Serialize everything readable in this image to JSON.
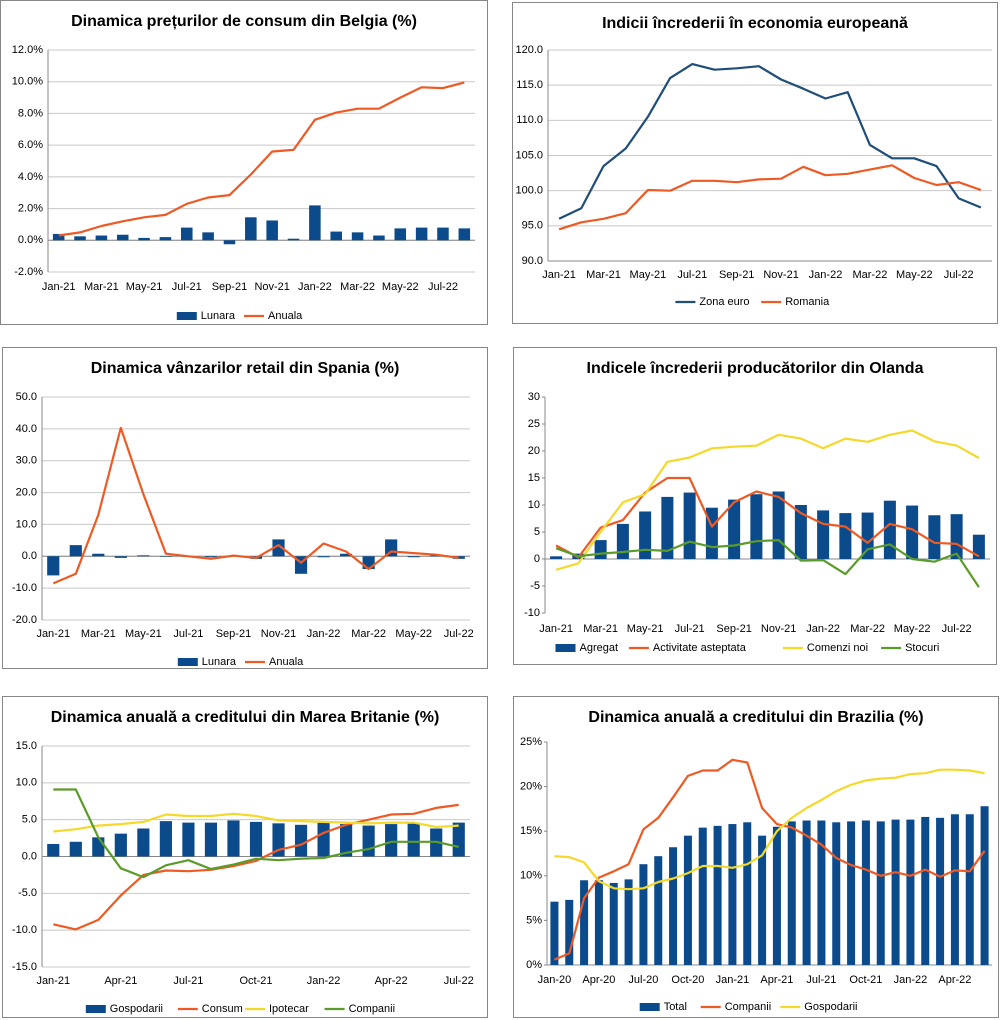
{
  "chart_data": [
    {
      "type": "combo",
      "title": "Dinamica prețurilor de consum din Belgia (%)",
      "categories": [
        "Jan-21",
        null,
        "Mar-21",
        null,
        "May-21",
        null,
        "Jul-21",
        null,
        "Sep-21",
        null,
        "Nov-21",
        null,
        "Jan-22",
        null,
        "Mar-22",
        null,
        "May-22",
        null,
        "Jul-22",
        null
      ],
      "series": [
        {
          "name": "Lunara",
          "type": "bar",
          "color": "#0b4a8b",
          "values": [
            0.4,
            0.25,
            0.3,
            0.35,
            0.15,
            0.2,
            0.8,
            0.5,
            -0.25,
            1.45,
            1.25,
            0.1,
            2.2,
            0.55,
            0.5,
            0.3,
            0.75,
            0.8,
            0.8,
            0.75
          ]
        },
        {
          "name": "Anuala",
          "type": "line",
          "color": "#ee5a24",
          "values": [
            0.3,
            0.5,
            0.9,
            1.2,
            1.45,
            1.6,
            2.3,
            2.7,
            2.85,
            4.15,
            5.6,
            5.7,
            7.6,
            8.05,
            8.3,
            8.3,
            9.0,
            9.65,
            9.6,
            9.95
          ]
        }
      ],
      "ylim": [
        -2,
        12
      ],
      "yticks": [
        {
          "value": -2,
          "label": "-2.0%"
        },
        {
          "value": 0,
          "label": "0.0%"
        },
        {
          "value": 2,
          "label": "2.0%"
        },
        {
          "value": 4,
          "label": "4.0%"
        },
        {
          "value": 6,
          "label": "6.0%"
        },
        {
          "value": 8,
          "label": "8.0%"
        },
        {
          "value": 10,
          "label": "10.0%"
        },
        {
          "value": 12,
          "label": "12.0%"
        }
      ],
      "grid": true,
      "legend": "bottom"
    },
    {
      "type": "line",
      "title": "Indicii încrederii în economia europeană",
      "categories": [
        "Jan-21",
        null,
        "Mar-21",
        null,
        "May-21",
        null,
        "Jul-21",
        null,
        "Sep-21",
        null,
        "Nov-21",
        null,
        "Jan-22",
        null,
        "Mar-22",
        null,
        "May-22",
        null,
        "Jul-22",
        null
      ],
      "series": [
        {
          "name": "Zona euro",
          "type": "line",
          "color": "#1f4e79",
          "values": [
            96.0,
            97.5,
            103.5,
            106.0,
            110.5,
            116.0,
            118.0,
            117.2,
            117.4,
            117.7,
            115.8,
            114.5,
            113.1,
            114.0,
            106.5,
            104.6,
            104.6,
            103.5,
            98.9,
            97.6
          ]
        },
        {
          "name": "Romania",
          "type": "line",
          "color": "#ee5a24",
          "values": [
            94.5,
            95.5,
            96.0,
            96.8,
            100.1,
            100.0,
            101.4,
            101.4,
            101.2,
            101.6,
            101.7,
            103.4,
            102.2,
            102.4,
            103.0,
            103.6,
            101.8,
            100.8,
            101.2,
            100.1
          ]
        }
      ],
      "ylim": [
        90,
        120
      ],
      "yticks": [
        {
          "value": 90,
          "label": "90.0"
        },
        {
          "value": 95,
          "label": "95.0"
        },
        {
          "value": 100,
          "label": "100.0"
        },
        {
          "value": 105,
          "label": "105.0"
        },
        {
          "value": 110,
          "label": "110.0"
        },
        {
          "value": 115,
          "label": "115.0"
        },
        {
          "value": 120,
          "label": "120.0"
        }
      ],
      "grid": true,
      "legend": "bottom"
    },
    {
      "type": "combo",
      "title": "Dinamica vânzarilor retail din Spania (%)",
      "categories": [
        "Jan-21",
        null,
        "Mar-21",
        null,
        "May-21",
        null,
        "Jul-21",
        null,
        "Sep-21",
        null,
        "Nov-21",
        null,
        "Jan-22",
        null,
        "Mar-22",
        null,
        "May-22",
        null,
        "Jul-22"
      ],
      "series": [
        {
          "name": "Lunara",
          "type": "bar",
          "color": "#0b4a8b",
          "values": [
            -6.0,
            3.5,
            0.8,
            -0.5,
            0.3,
            0.0,
            0.0,
            -0.3,
            0.2,
            -0.8,
            5.3,
            -5.5,
            -0.3,
            0.8,
            -4.0,
            5.3,
            -0.3,
            0.3,
            -0.8
          ]
        },
        {
          "name": "Anuala",
          "type": "line",
          "color": "#ee5a24",
          "values": [
            -8.5,
            -5.5,
            13.0,
            40.3,
            19.5,
            0.8,
            0.0,
            -0.8,
            0.2,
            -0.5,
            3.5,
            -2.0,
            4.0,
            1.5,
            -4.0,
            1.5,
            1.0,
            0.5,
            -0.5
          ]
        }
      ],
      "ylim": [
        -20,
        50
      ],
      "yticks": [
        {
          "value": -20,
          "label": "-20.0"
        },
        {
          "value": -10,
          "label": "-10.0"
        },
        {
          "value": 0,
          "label": "0.0"
        },
        {
          "value": 10,
          "label": "10.0"
        },
        {
          "value": 20,
          "label": "20.0"
        },
        {
          "value": 30,
          "label": "30.0"
        },
        {
          "value": 40,
          "label": "40.0"
        },
        {
          "value": 50,
          "label": "50.0"
        }
      ],
      "grid": true,
      "legend": "bottom"
    },
    {
      "type": "combo",
      "title": "Indicele încrederii producătorilor din Olanda",
      "categories": [
        "Jan-21",
        null,
        "Mar-21",
        null,
        "May-21",
        null,
        "Jul-21",
        null,
        "Sep-21",
        null,
        "Nov-21",
        null,
        "Jan-22",
        null,
        "Mar-22",
        null,
        "May-22",
        null,
        "Jul-22",
        null
      ],
      "series": [
        {
          "name": "Agregat",
          "type": "bar",
          "color": "#0b4a8b",
          "values": [
            0.5,
            1.0,
            3.5,
            6.5,
            8.8,
            11.5,
            12.3,
            9.5,
            11.0,
            12.0,
            12.5,
            10.0,
            9.0,
            8.5,
            8.6,
            10.8,
            9.9,
            8.1,
            8.3,
            4.5
          ]
        },
        {
          "name": "Activitate asteptata",
          "type": "line",
          "color": "#ee5a24",
          "values": [
            2.5,
            0.3,
            5.8,
            7.2,
            12.3,
            15.0,
            15.0,
            6.0,
            10.5,
            12.5,
            11.5,
            8.5,
            6.5,
            6.0,
            3.0,
            6.5,
            5.5,
            3.0,
            2.8,
            0.5
          ]
        },
        {
          "name": "Comenzi noi",
          "type": "line",
          "color": "#f5d92a",
          "values": [
            -2.0,
            -0.8,
            5.0,
            10.5,
            12.0,
            18.0,
            18.8,
            20.5,
            20.8,
            21.0,
            23.0,
            22.3,
            20.5,
            22.3,
            21.7,
            23.0,
            23.8,
            21.8,
            21.0,
            18.7
          ]
        },
        {
          "name": "Stocuri",
          "type": "line",
          "color": "#5a9b2a",
          "values": [
            2.0,
            0.5,
            1.0,
            1.3,
            1.7,
            1.5,
            3.2,
            2.2,
            2.5,
            3.3,
            3.5,
            -0.3,
            -0.2,
            -2.8,
            1.8,
            2.7,
            0.0,
            -0.5,
            1.0,
            -5.2
          ]
        }
      ],
      "ylim": [
        -10,
        30
      ],
      "yticks": [
        -10,
        -5,
        0,
        5,
        10,
        15,
        20,
        25,
        30
      ],
      "grid": false,
      "legend": "bottom"
    },
    {
      "type": "combo",
      "title": "Dinamica anuală a creditului din Marea Britanie (%)",
      "categories": [
        "Jan-21",
        null,
        null,
        "Apr-21",
        null,
        null,
        "Jul-21",
        null,
        null,
        "Oct-21",
        null,
        null,
        "Jan-22",
        null,
        null,
        "Apr-22",
        null,
        null,
        "Jul-22"
      ],
      "series": [
        {
          "name": "Gospodarii",
          "type": "bar",
          "color": "#0b4a8b",
          "values": [
            1.7,
            2.0,
            2.6,
            3.1,
            3.8,
            4.8,
            4.6,
            4.6,
            4.9,
            4.7,
            4.5,
            4.3,
            4.6,
            4.4,
            4.2,
            4.4,
            4.5,
            3.8,
            4.6
          ]
        },
        {
          "name": "Consum",
          "type": "line",
          "color": "#ee5a24",
          "values": [
            -9.2,
            -9.9,
            -8.6,
            -5.3,
            -2.5,
            -1.9,
            -2.0,
            -1.8,
            -1.3,
            -0.6,
            0.9,
            1.6,
            3.2,
            4.3,
            5.0,
            5.7,
            5.8,
            6.6,
            7.0
          ]
        },
        {
          "name": "Ipotecar",
          "type": "line",
          "color": "#f5d92a",
          "values": [
            3.4,
            3.7,
            4.2,
            4.4,
            4.7,
            5.7,
            5.5,
            5.5,
            5.8,
            5.5,
            4.9,
            4.8,
            4.7,
            4.6,
            4.5,
            4.6,
            4.6,
            4.0,
            4.2
          ]
        },
        {
          "name": "Companii",
          "type": "line",
          "color": "#5a9b2a",
          "values": [
            9.1,
            9.1,
            2.6,
            -1.6,
            -2.8,
            -1.2,
            -0.5,
            -1.7,
            -1.1,
            -0.3,
            -0.5,
            -0.3,
            -0.2,
            0.5,
            1.0,
            2.0,
            2.0,
            2.0,
            1.3
          ]
        }
      ],
      "ylim": [
        -15,
        15
      ],
      "yticks": [
        {
          "value": -15,
          "label": "-15.0"
        },
        {
          "value": -10,
          "label": "-10.0"
        },
        {
          "value": -5,
          "label": "-5.0"
        },
        {
          "value": 0,
          "label": "0.0"
        },
        {
          "value": 5,
          "label": "5.0"
        },
        {
          "value": 10,
          "label": "10.0"
        },
        {
          "value": 15,
          "label": "15.0"
        }
      ],
      "grid": true,
      "legend": "bottom"
    },
    {
      "type": "combo",
      "title": "Dinamica anuală a creditului din Brazilia (%)",
      "categories": [
        "Jan-20",
        null,
        null,
        "Apr-20",
        null,
        null,
        "Jul-20",
        null,
        null,
        "Oct-20",
        null,
        null,
        "Jan-21",
        null,
        null,
        "Apr-21",
        null,
        null,
        "Jul-21",
        null,
        null,
        "Oct-21",
        null,
        null,
        "Jan-22",
        null,
        null,
        "Apr-22",
        null,
        null
      ],
      "series": [
        {
          "name": "Total",
          "type": "bar",
          "color": "#0b4a8b",
          "values": [
            7.1,
            7.3,
            9.5,
            9.5,
            9.2,
            9.6,
            11.3,
            12.2,
            13.2,
            14.5,
            15.4,
            15.6,
            15.8,
            16.0,
            14.5,
            15.5,
            16.1,
            16.2,
            16.2,
            16.0,
            16.1,
            16.2,
            16.1,
            16.3,
            16.3,
            16.6,
            16.5,
            16.9,
            16.9,
            17.8
          ]
        },
        {
          "name": "Companii",
          "type": "line",
          "color": "#ee5a24",
          "values": [
            0.6,
            1.3,
            7.5,
            9.8,
            10.5,
            11.3,
            15.2,
            16.5,
            18.8,
            21.2,
            21.8,
            21.8,
            23.0,
            22.7,
            17.6,
            15.8,
            15.4,
            14.5,
            13.5,
            12.0,
            11.2,
            10.7,
            10.0,
            10.4,
            10.0,
            10.7,
            9.9,
            10.6,
            10.5,
            12.8
          ]
        },
        {
          "name": "Gospodarii",
          "type": "line",
          "color": "#f5d92a",
          "values": [
            12.2,
            12.1,
            11.5,
            9.4,
            8.6,
            8.5,
            8.6,
            9.3,
            9.7,
            10.3,
            11.1,
            11.1,
            10.9,
            11.3,
            12.3,
            15.0,
            16.5,
            17.6,
            18.5,
            19.5,
            20.2,
            20.7,
            20.9,
            21.0,
            21.4,
            21.5,
            21.9,
            21.9,
            21.8,
            21.5
          ]
        }
      ],
      "ylim": [
        0,
        25
      ],
      "yticks": [
        {
          "value": 0,
          "label": "0%"
        },
        {
          "value": 5,
          "label": "5%"
        },
        {
          "value": 10,
          "label": "10%"
        },
        {
          "value": 15,
          "label": "15%"
        },
        {
          "value": 20,
          "label": "20%"
        },
        {
          "value": 25,
          "label": "25%"
        }
      ],
      "grid": false,
      "legend": "bottom"
    }
  ]
}
